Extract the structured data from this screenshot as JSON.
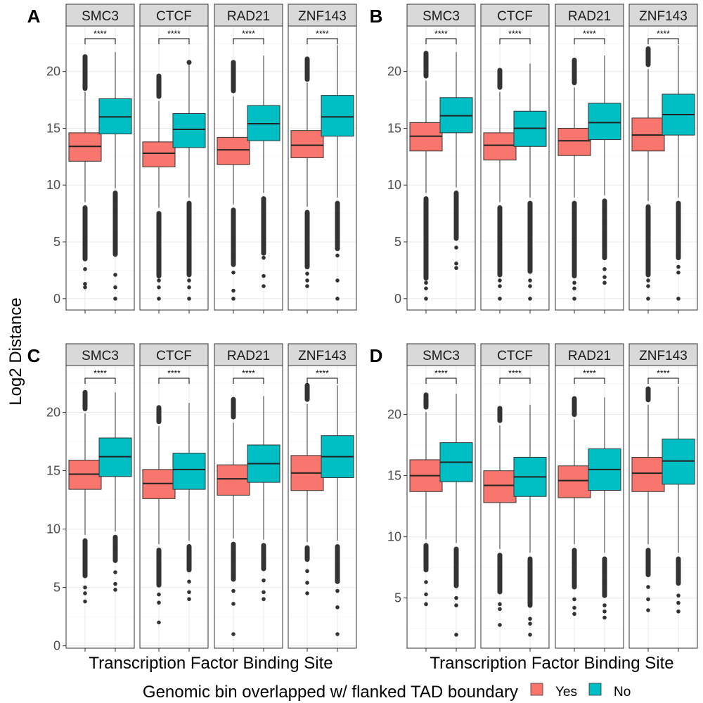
{
  "figure": {
    "ylabel": "Log2 Distance",
    "xlabel": "Transcription Factor Binding Site",
    "legend_title": "Genomic bin overlapped w/ flanked TAD boundary",
    "legend_items": [
      {
        "label": "Yes",
        "color": "#F8766D"
      },
      {
        "label": "No",
        "color": "#00BFC4"
      }
    ],
    "significance": "****"
  },
  "chart_data": [
    {
      "type": "boxplot",
      "panel": "A",
      "ylim": [
        -1,
        24
      ],
      "yticks": [
        0,
        5,
        10,
        15,
        20
      ],
      "facets": [
        {
          "name": "SMC3",
          "yes": {
            "q1": 12.1,
            "median": 13.4,
            "q3": 14.6,
            "whisker_low": 8.5,
            "whisker_high": 18.2,
            "out_high": [
              18.5,
              19.0,
              19.5,
              20.0,
              20.5,
              21.0,
              21.3
            ],
            "out_low": [
              8.0,
              7.0,
              6.0,
              5.0,
              4.0,
              3.5,
              2.6,
              1.3,
              1.0
            ]
          },
          "no": {
            "q1": 14.5,
            "median": 16.0,
            "q3": 17.6,
            "whisker_low": 9.7,
            "whisker_high": 21.7,
            "out_high": [],
            "out_low": [
              9.3,
              8.5,
              7.5,
              6.5,
              5.5,
              4.5,
              3.9,
              2.1,
              1.0,
              0.0
            ]
          }
        },
        {
          "name": "CTCF",
          "yes": {
            "q1": 11.6,
            "median": 12.8,
            "q3": 13.8,
            "whisker_low": 8.0,
            "whisker_high": 17.4,
            "out_high": [
              17.8,
              18.3,
              18.8,
              19.3,
              19.6
            ],
            "out_low": [
              7.5,
              6.5,
              5.5,
              4.5,
              3.5,
              2.8,
              2.4,
              2.0,
              1.6,
              1.0,
              0.0
            ]
          },
          "no": {
            "q1": 13.3,
            "median": 14.9,
            "q3": 16.3,
            "whisker_low": 8.9,
            "whisker_high": 20.7,
            "out_high": [
              20.8
            ],
            "out_low": [
              8.4,
              7.5,
              6.5,
              5.5,
              4.5,
              3.5,
              2.9,
              2.1,
              1.6,
              1.0,
              0.0
            ]
          }
        },
        {
          "name": "RAD21",
          "yes": {
            "q1": 11.8,
            "median": 13.1,
            "q3": 14.2,
            "whisker_low": 8.3,
            "whisker_high": 17.8,
            "out_high": [
              18.3,
              18.8,
              19.3,
              19.8,
              20.3,
              20.8
            ],
            "out_low": [
              7.8,
              7.0,
              6.0,
              5.0,
              4.0,
              3.0,
              2.3,
              0.7,
              0.0
            ]
          },
          "no": {
            "q1": 13.9,
            "median": 15.4,
            "q3": 17.0,
            "whisker_low": 9.3,
            "whisker_high": 21.4,
            "out_high": [],
            "out_low": [
              8.8,
              8.0,
              7.0,
              6.0,
              5.0,
              4.0,
              3.6,
              2.0,
              1.1
            ]
          }
        },
        {
          "name": "ZNF143",
          "yes": {
            "q1": 12.4,
            "median": 13.5,
            "q3": 14.8,
            "whisker_low": 8.1,
            "whisker_high": 19.0,
            "out_high": [
              19.3,
              19.8,
              20.3,
              20.8,
              21.1
            ],
            "out_low": [
              7.6,
              6.6,
              5.6,
              4.6,
              3.6,
              2.8,
              2.2,
              1.6,
              1.1
            ]
          },
          "no": {
            "q1": 14.3,
            "median": 16.0,
            "q3": 17.9,
            "whisker_low": 8.9,
            "whisker_high": 22.3,
            "out_high": [],
            "out_low": [
              8.4,
              7.4,
              6.4,
              5.4,
              4.4,
              3.8,
              1.6,
              0.0
            ]
          }
        }
      ]
    },
    {
      "type": "boxplot",
      "panel": "B",
      "ylim": [
        -1,
        24
      ],
      "yticks": [
        0,
        5,
        10,
        15,
        20
      ],
      "facets": [
        {
          "name": "SMC3",
          "yes": {
            "q1": 13.0,
            "median": 14.3,
            "q3": 15.5,
            "whisker_low": 9.3,
            "whisker_high": 19.2,
            "out_high": [
              19.6,
              20.1,
              20.6,
              21.1,
              21.6
            ],
            "out_low": [
              8.8,
              7.8,
              6.8,
              5.8,
              4.8,
              3.8,
              2.6,
              1.8,
              1.4,
              0.9,
              0.0
            ]
          },
          "no": {
            "q1": 14.6,
            "median": 16.1,
            "q3": 17.7,
            "whisker_low": 9.8,
            "whisker_high": 21.7,
            "out_high": [],
            "out_low": [
              9.3,
              8.3,
              7.3,
              6.3,
              5.3,
              4.5,
              3.1,
              2.7
            ]
          }
        },
        {
          "name": "CTCF",
          "yes": {
            "q1": 12.2,
            "median": 13.5,
            "q3": 14.6,
            "whisker_low": 8.5,
            "whisker_high": 18.2,
            "out_high": [
              18.6,
              19.1,
              19.6,
              20.1
            ],
            "out_low": [
              8.0,
              7.0,
              6.0,
              5.0,
              4.0,
              3.1,
              2.6,
              2.1,
              1.6,
              1.1,
              0.0
            ]
          },
          "no": {
            "q1": 13.4,
            "median": 15.0,
            "q3": 16.5,
            "whisker_low": 8.9,
            "whisker_high": 20.7,
            "out_high": [],
            "out_low": [
              8.4,
              7.4,
              6.4,
              5.4,
              4.4,
              3.1,
              2.4,
              1.6,
              1.1,
              0.0
            ]
          }
        },
        {
          "name": "RAD21",
          "yes": {
            "q1": 12.6,
            "median": 13.9,
            "q3": 15.0,
            "whisker_low": 8.9,
            "whisker_high": 18.6,
            "out_high": [
              19.0,
              19.5,
              20.0,
              20.5,
              21.0
            ],
            "out_low": [
              8.4,
              7.4,
              6.4,
              5.4,
              4.4,
              3.4,
              2.6,
              2.0,
              1.4,
              0.9,
              0.0
            ]
          },
          "no": {
            "q1": 14.0,
            "median": 15.5,
            "q3": 17.2,
            "whisker_low": 9.1,
            "whisker_high": 21.4,
            "out_high": [],
            "out_low": [
              8.6,
              7.6,
              6.6,
              5.6,
              4.6,
              3.6,
              2.6,
              1.9,
              1.4
            ]
          }
        },
        {
          "name": "ZNF143",
          "yes": {
            "q1": 13.0,
            "median": 14.4,
            "q3": 15.9,
            "whisker_low": 8.6,
            "whisker_high": 20.2,
            "out_high": [
              20.6,
              21.1,
              21.6,
              22.0
            ],
            "out_low": [
              8.1,
              7.1,
              6.1,
              5.1,
              4.1,
              3.1,
              2.1,
              1.6,
              1.1,
              0.0
            ]
          },
          "no": {
            "q1": 14.4,
            "median": 16.2,
            "q3": 18.0,
            "whisker_low": 8.9,
            "whisker_high": 22.3,
            "out_high": [],
            "out_low": [
              8.4,
              7.4,
              6.4,
              5.4,
              4.4,
              3.6,
              2.8,
              2.3,
              0.0
            ]
          }
        }
      ]
    },
    {
      "type": "boxplot",
      "panel": "C",
      "ylim": [
        -0.2,
        24
      ],
      "yticks": [
        0,
        5,
        10,
        15,
        20
      ],
      "facets": [
        {
          "name": "SMC3",
          "yes": {
            "q1": 13.4,
            "median": 14.7,
            "q3": 15.9,
            "whisker_low": 9.5,
            "whisker_high": 19.9,
            "out_high": [
              20.3,
              20.8,
              21.3,
              21.7
            ],
            "out_low": [
              9.0,
              8.0,
              7.0,
              6.0,
              5.0,
              4.5,
              3.8
            ]
          },
          "no": {
            "q1": 14.5,
            "median": 16.2,
            "q3": 17.8,
            "whisker_low": 9.8,
            "whisker_high": 21.7,
            "out_high": [],
            "out_low": [
              9.3,
              8.3,
              7.3,
              6.3,
              5.3,
              4.8
            ]
          }
        },
        {
          "name": "CTCF",
          "yes": {
            "q1": 12.6,
            "median": 13.9,
            "q3": 15.1,
            "whisker_low": 8.7,
            "whisker_high": 18.8,
            "out_high": [
              19.2,
              19.7,
              20.1,
              20.4
            ],
            "out_low": [
              8.2,
              7.2,
              6.2,
              5.2,
              4.4,
              3.7,
              2.0
            ]
          },
          "no": {
            "q1": 13.4,
            "median": 15.1,
            "q3": 16.5,
            "whisker_low": 9.0,
            "whisker_high": 20.8,
            "out_high": [],
            "out_low": [
              8.5,
              7.5,
              6.5,
              5.5,
              4.6,
              4.0
            ]
          }
        },
        {
          "name": "RAD21",
          "yes": {
            "q1": 12.9,
            "median": 14.3,
            "q3": 15.5,
            "whisker_low": 9.2,
            "whisker_high": 19.1,
            "out_high": [
              19.6,
              20.1,
              20.6,
              21.1
            ],
            "out_low": [
              8.7,
              7.7,
              6.7,
              5.7,
              4.7,
              3.6,
              1.0
            ]
          },
          "no": {
            "q1": 14.0,
            "median": 15.6,
            "q3": 17.2,
            "whisker_low": 9.1,
            "whisker_high": 21.4,
            "out_high": [],
            "out_low": [
              8.6,
              7.6,
              6.6,
              5.6,
              4.6,
              4.0
            ]
          }
        },
        {
          "name": "ZNF143",
          "yes": {
            "q1": 13.3,
            "median": 14.8,
            "q3": 16.3,
            "whisker_low": 8.9,
            "whisker_high": 20.7,
            "out_high": [
              21.1,
              21.6,
              22.0,
              22.3
            ],
            "out_low": [
              8.4,
              7.4,
              6.4,
              5.4,
              4.5
            ]
          },
          "no": {
            "q1": 14.4,
            "median": 16.2,
            "q3": 18.0,
            "whisker_low": 9.0,
            "whisker_high": 22.3,
            "out_high": [],
            "out_low": [
              8.5,
              7.5,
              6.5,
              5.5,
              4.7,
              3.3,
              1.0
            ]
          }
        }
      ]
    },
    {
      "type": "boxplot",
      "panel": "D",
      "ylim": [
        0.9,
        24
      ],
      "yticks": [
        5,
        10,
        15,
        20
      ],
      "facets": [
        {
          "name": "SMC3",
          "yes": {
            "q1": 13.7,
            "median": 15.0,
            "q3": 16.3,
            "whisker_low": 9.8,
            "whisker_high": 20.2,
            "out_high": [
              20.6,
              21.1,
              21.6
            ],
            "out_low": [
              9.3,
              8.3,
              7.3,
              6.3,
              5.3,
              4.5
            ]
          },
          "no": {
            "q1": 14.5,
            "median": 16.1,
            "q3": 17.7,
            "whisker_low": 9.5,
            "whisker_high": 21.7,
            "out_high": [],
            "out_low": [
              9.0,
              8.0,
              7.0,
              6.0,
              5.0,
              4.4,
              2.0
            ]
          }
        },
        {
          "name": "CTCF",
          "yes": {
            "q1": 12.8,
            "median": 14.2,
            "q3": 15.4,
            "whisker_low": 9.0,
            "whisker_high": 19.1,
            "out_high": [
              19.5,
              20.0,
              20.5
            ],
            "out_low": [
              8.5,
              7.5,
              6.5,
              5.5,
              4.5,
              4.1,
              2.8
            ]
          },
          "no": {
            "q1": 13.3,
            "median": 14.9,
            "q3": 16.5,
            "whisker_low": 8.7,
            "whisker_high": 20.8,
            "out_high": [],
            "out_low": [
              8.2,
              7.2,
              6.2,
              5.2,
              4.4,
              3.3,
              2.9,
              2.0
            ]
          }
        },
        {
          "name": "RAD21",
          "yes": {
            "q1": 13.2,
            "median": 14.6,
            "q3": 15.8,
            "whisker_low": 9.4,
            "whisker_high": 19.6,
            "out_high": [
              20.0,
              20.5,
              21.0,
              21.3
            ],
            "out_low": [
              8.9,
              7.9,
              6.9,
              5.9,
              4.9,
              4.2,
              3.7
            ]
          },
          "no": {
            "q1": 13.8,
            "median": 15.5,
            "q3": 17.2,
            "whisker_low": 8.7,
            "whisker_high": 21.4,
            "out_high": [],
            "out_low": [
              8.2,
              7.2,
              6.2,
              5.2,
              4.4,
              3.9,
              3.4
            ]
          }
        },
        {
          "name": "ZNF143",
          "yes": {
            "q1": 13.7,
            "median": 15.2,
            "q3": 16.5,
            "whisker_low": 9.4,
            "whisker_high": 20.8,
            "out_high": [
              21.2,
              21.7,
              22.1
            ],
            "out_low": [
              8.9,
              7.9,
              6.9,
              5.9,
              4.9,
              4.0
            ]
          },
          "no": {
            "q1": 14.3,
            "median": 16.2,
            "q3": 18.0,
            "whisker_low": 8.7,
            "whisker_high": 22.3,
            "out_high": [],
            "out_low": [
              8.2,
              7.2,
              6.2,
              5.2,
              4.6,
              3.9
            ]
          }
        }
      ]
    }
  ]
}
